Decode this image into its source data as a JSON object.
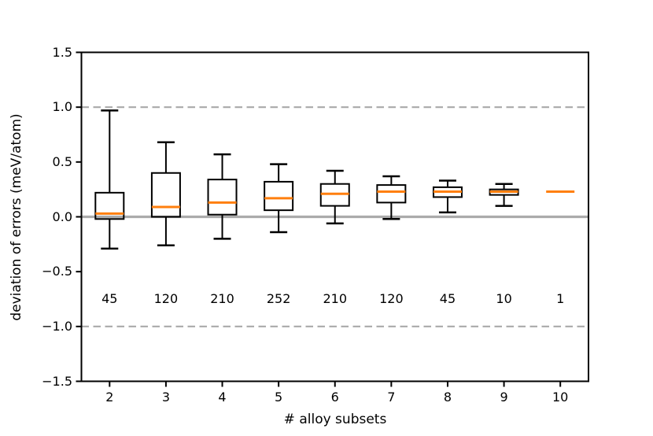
{
  "figure": {
    "xlabel": "# alloy subsets",
    "ylabel": "deviation of errors (meV/atom)"
  },
  "chart_data": {
    "type": "boxplot",
    "title": "",
    "xlabel": "# alloy subsets",
    "ylabel": "deviation of errors (meV/atom)",
    "categories": [
      "2",
      "3",
      "4",
      "5",
      "6",
      "7",
      "8",
      "9",
      "10"
    ],
    "counts": [
      "45",
      "120",
      "210",
      "252",
      "210",
      "120",
      "45",
      "10",
      "1"
    ],
    "counts_y": -0.75,
    "boxes": [
      {
        "x": "2",
        "whislo": -0.29,
        "q1": -0.02,
        "med": 0.03,
        "q3": 0.22,
        "whishi": 0.97,
        "n": 45
      },
      {
        "x": "3",
        "whislo": -0.26,
        "q1": 0.0,
        "med": 0.09,
        "q3": 0.4,
        "whishi": 0.68,
        "n": 120
      },
      {
        "x": "4",
        "whislo": -0.2,
        "q1": 0.02,
        "med": 0.13,
        "q3": 0.34,
        "whishi": 0.57,
        "n": 210
      },
      {
        "x": "5",
        "whislo": -0.14,
        "q1": 0.06,
        "med": 0.17,
        "q3": 0.32,
        "whishi": 0.48,
        "n": 252
      },
      {
        "x": "6",
        "whislo": -0.06,
        "q1": 0.1,
        "med": 0.21,
        "q3": 0.3,
        "whishi": 0.42,
        "n": 210
      },
      {
        "x": "7",
        "whislo": -0.02,
        "q1": 0.13,
        "med": 0.23,
        "q3": 0.29,
        "whishi": 0.37,
        "n": 120
      },
      {
        "x": "8",
        "whislo": 0.04,
        "q1": 0.18,
        "med": 0.23,
        "q3": 0.27,
        "whishi": 0.33,
        "n": 45
      },
      {
        "x": "9",
        "whislo": 0.1,
        "q1": 0.2,
        "med": 0.23,
        "q3": 0.25,
        "whishi": 0.3,
        "n": 10
      },
      {
        "x": "10",
        "whislo": 0.23,
        "q1": 0.23,
        "med": 0.23,
        "q3": 0.23,
        "whishi": 0.23,
        "n": 1
      }
    ],
    "ylim": [
      -1.5,
      1.5
    ],
    "yticks": [
      {
        "value": 1.5,
        "label": "1.5"
      },
      {
        "value": 1.0,
        "label": "1.0"
      },
      {
        "value": 0.5,
        "label": "0.5"
      },
      {
        "value": 0.0,
        "label": "0.0"
      },
      {
        "value": -0.5,
        "label": "−0.5"
      },
      {
        "value": -1.0,
        "label": "−1.0"
      },
      {
        "value": -1.5,
        "label": "−1.5"
      }
    ],
    "reference_lines": [
      {
        "y": 1.0,
        "style": "dashed",
        "color": "#a9a9a9"
      },
      {
        "y": 0.0,
        "style": "solid",
        "color": "#ababab"
      },
      {
        "y": -1.0,
        "style": "dashed",
        "color": "#a9a9a9"
      }
    ],
    "legend": "none",
    "grid": "off",
    "colors": {
      "box_line": "#000000",
      "median": "#ff7f0e",
      "dashed_ref": "#a9a9a9",
      "solid_ref": "#ababab",
      "text": "#000000"
    }
  }
}
